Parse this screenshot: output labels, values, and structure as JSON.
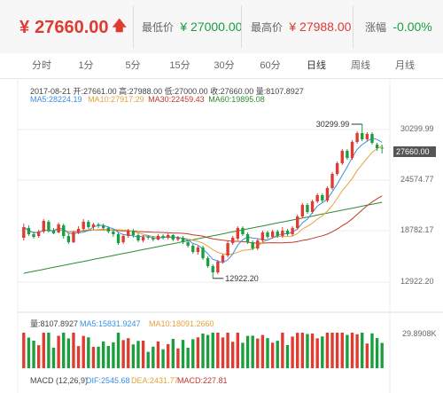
{
  "header": {
    "currency": "¥",
    "price": "27660.00",
    "low_label": "最低价",
    "low_value": "¥ 27000.00",
    "high_label": "最高价",
    "high_value": "¥ 27988.00",
    "change_label": "涨幅",
    "change_value": "-0.00%",
    "colors": {
      "up": "#e03a31",
      "down": "#1a9e3e"
    }
  },
  "tabs": [
    "分时",
    "1分",
    "5分",
    "15分",
    "30分",
    "60分",
    "日线",
    "周线",
    "月线"
  ],
  "active_tab": "日线",
  "info": {
    "line1": "2017-08-21  开:27661.00  高:27988.00  低:27000.00  收:27660.00  量:8107.8927",
    "ma5": "MA5:28224.19",
    "ma10": "MA10:27917.29",
    "ma30": "MA30:22459.43",
    "ma60": "MA60:19895.08"
  },
  "price_axis": [
    "30299.99",
    "24574.77",
    "18782.17",
    "12922.20"
  ],
  "current_price_tag": "27660.00",
  "annotations": {
    "high": "30299.99",
    "low": "12922.20"
  },
  "volume_info": {
    "vol": "量:8107.8927",
    "ma5": "MA5:15831.9247",
    "ma10": "MA10:18091.2660",
    "axis_top": "29.8908K"
  },
  "macd_info": {
    "title": "MACD (12,26,9)",
    "dif": "DIF:2545.68",
    "dea": "DEA:2431.77",
    "macd": "MACD:227.81"
  },
  "chart_data": {
    "type": "candlestick",
    "ylim": [
      11500,
      31500
    ],
    "candles": [
      {
        "o": 17500,
        "c": 18700,
        "h": 19100,
        "l": 17200
      },
      {
        "o": 18600,
        "c": 17900,
        "h": 18900,
        "l": 17700
      },
      {
        "o": 17900,
        "c": 17600,
        "h": 18200,
        "l": 17400
      },
      {
        "o": 17700,
        "c": 18200,
        "h": 18400,
        "l": 17500
      },
      {
        "o": 18200,
        "c": 19400,
        "h": 19600,
        "l": 18000
      },
      {
        "o": 19300,
        "c": 18300,
        "h": 19500,
        "l": 18100
      },
      {
        "o": 18300,
        "c": 18000,
        "h": 18600,
        "l": 17900
      },
      {
        "o": 18100,
        "c": 19000,
        "h": 19200,
        "l": 18000
      },
      {
        "o": 18900,
        "c": 17700,
        "h": 19100,
        "l": 17400
      },
      {
        "o": 17700,
        "c": 17000,
        "h": 18000,
        "l": 16800
      },
      {
        "o": 17000,
        "c": 18100,
        "h": 18300,
        "l": 16900
      },
      {
        "o": 18100,
        "c": 18500,
        "h": 18800,
        "l": 17900
      },
      {
        "o": 18500,
        "c": 19300,
        "h": 19600,
        "l": 18300
      },
      {
        "o": 19300,
        "c": 18700,
        "h": 19500,
        "l": 18500
      },
      {
        "o": 18700,
        "c": 19000,
        "h": 19200,
        "l": 18400
      },
      {
        "o": 19000,
        "c": 18900,
        "h": 19200,
        "l": 18600
      },
      {
        "o": 18900,
        "c": 18600,
        "h": 19100,
        "l": 18400
      },
      {
        "o": 18600,
        "c": 18200,
        "h": 18800,
        "l": 18000
      },
      {
        "o": 18200,
        "c": 17900,
        "h": 18400,
        "l": 17600
      },
      {
        "o": 17900,
        "c": 16900,
        "h": 18100,
        "l": 16700
      },
      {
        "o": 17000,
        "c": 17700,
        "h": 17900,
        "l": 16800
      },
      {
        "o": 17700,
        "c": 18300,
        "h": 18500,
        "l": 17500
      },
      {
        "o": 18300,
        "c": 17800,
        "h": 18500,
        "l": 17500
      },
      {
        "o": 17800,
        "c": 17200,
        "h": 18000,
        "l": 17000
      },
      {
        "o": 17200,
        "c": 17600,
        "h": 17800,
        "l": 17000
      },
      {
        "o": 17600,
        "c": 17500,
        "h": 17800,
        "l": 17300
      },
      {
        "o": 17500,
        "c": 17300,
        "h": 17700,
        "l": 17100
      },
      {
        "o": 17300,
        "c": 17700,
        "h": 17900,
        "l": 17200
      },
      {
        "o": 17700,
        "c": 17500,
        "h": 17900,
        "l": 17300
      },
      {
        "o": 17500,
        "c": 17800,
        "h": 18000,
        "l": 17300
      },
      {
        "o": 17800,
        "c": 17300,
        "h": 17900,
        "l": 17100
      },
      {
        "o": 17300,
        "c": 17500,
        "h": 17700,
        "l": 17100
      },
      {
        "o": 17500,
        "c": 17000,
        "h": 17700,
        "l": 16800
      },
      {
        "o": 17000,
        "c": 16600,
        "h": 17200,
        "l": 16400
      },
      {
        "o": 16600,
        "c": 15900,
        "h": 16800,
        "l": 15700
      },
      {
        "o": 15900,
        "c": 16400,
        "h": 16600,
        "l": 15600
      },
      {
        "o": 16400,
        "c": 15200,
        "h": 16600,
        "l": 15000
      },
      {
        "o": 15200,
        "c": 14300,
        "h": 15400,
        "l": 14100
      },
      {
        "o": 14300,
        "c": 13600,
        "h": 14500,
        "l": 12922
      },
      {
        "o": 13600,
        "c": 14800,
        "h": 15000,
        "l": 13400
      },
      {
        "o": 14800,
        "c": 15500,
        "h": 15700,
        "l": 14600
      },
      {
        "o": 15500,
        "c": 16900,
        "h": 17100,
        "l": 15300
      },
      {
        "o": 16900,
        "c": 17500,
        "h": 17700,
        "l": 16700
      },
      {
        "o": 17400,
        "c": 18600,
        "h": 18800,
        "l": 17200
      },
      {
        "o": 18600,
        "c": 17900,
        "h": 18800,
        "l": 17700
      },
      {
        "o": 17900,
        "c": 17000,
        "h": 18100,
        "l": 16800
      },
      {
        "o": 17000,
        "c": 16300,
        "h": 17200,
        "l": 16100
      },
      {
        "o": 16300,
        "c": 17200,
        "h": 17400,
        "l": 16100
      },
      {
        "o": 17200,
        "c": 18100,
        "h": 18300,
        "l": 17000
      },
      {
        "o": 18100,
        "c": 17600,
        "h": 18300,
        "l": 17400
      },
      {
        "o": 17600,
        "c": 18200,
        "h": 18400,
        "l": 17400
      },
      {
        "o": 18200,
        "c": 17700,
        "h": 18400,
        "l": 17500
      },
      {
        "o": 17700,
        "c": 18300,
        "h": 18700,
        "l": 17500
      },
      {
        "o": 18300,
        "c": 17900,
        "h": 18500,
        "l": 17700
      },
      {
        "o": 17900,
        "c": 18600,
        "h": 18800,
        "l": 17700
      },
      {
        "o": 18600,
        "c": 19900,
        "h": 20100,
        "l": 18400
      },
      {
        "o": 19900,
        "c": 21200,
        "h": 21400,
        "l": 19700
      },
      {
        "o": 21200,
        "c": 20400,
        "h": 21400,
        "l": 20200
      },
      {
        "o": 20400,
        "c": 21600,
        "h": 21800,
        "l": 20200
      },
      {
        "o": 21600,
        "c": 22300,
        "h": 22500,
        "l": 21400
      },
      {
        "o": 22300,
        "c": 21700,
        "h": 22500,
        "l": 21500
      },
      {
        "o": 21700,
        "c": 23100,
        "h": 23300,
        "l": 21500
      },
      {
        "o": 23100,
        "c": 24700,
        "h": 24900,
        "l": 22900
      },
      {
        "o": 24700,
        "c": 25900,
        "h": 26100,
        "l": 24500
      },
      {
        "o": 25900,
        "c": 27300,
        "h": 27500,
        "l": 25700
      },
      {
        "o": 27300,
        "c": 26500,
        "h": 27500,
        "l": 26300
      },
      {
        "o": 26500,
        "c": 28300,
        "h": 28500,
        "l": 26300
      },
      {
        "o": 28300,
        "c": 29300,
        "h": 29500,
        "l": 28100
      },
      {
        "o": 29300,
        "c": 28600,
        "h": 30299,
        "l": 28400
      },
      {
        "o": 28600,
        "c": 29200,
        "h": 29400,
        "l": 28400
      },
      {
        "o": 29200,
        "c": 28200,
        "h": 29400,
        "l": 28000
      },
      {
        "o": 28000,
        "c": 27600,
        "h": 28200,
        "l": 27300
      },
      {
        "o": 27661,
        "c": 27660,
        "h": 27988,
        "l": 27000
      }
    ]
  }
}
